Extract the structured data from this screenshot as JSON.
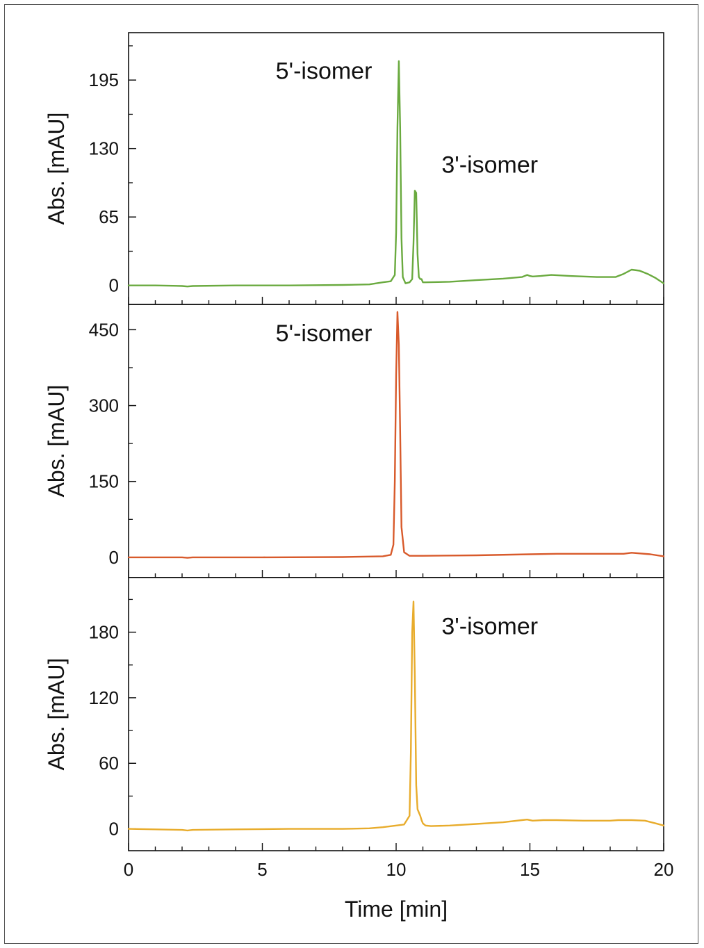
{
  "chart_data": {
    "type": "line",
    "xlabel": "Time [min]",
    "xlim": [
      0,
      20
    ],
    "x_ticks": [
      0,
      5,
      10,
      15,
      20
    ],
    "grid": false,
    "legend": "none",
    "panels": [
      {
        "ylabel": "Abs. [mAU]",
        "ylim": [
          -18,
          240
        ],
        "y_ticks": [
          0,
          65,
          130,
          195
        ],
        "color": "#6aaa3f",
        "annotations": [
          {
            "text": "5'-isomer",
            "x": 7.3,
            "y": 196
          },
          {
            "text": "3'-isomer",
            "x": 13.5,
            "y": 107
          }
        ],
        "series": [
          {
            "x": [
              0,
              1,
              2,
              2.2,
              2.4,
              4,
              6,
              8,
              9,
              9.5,
              9.8,
              9.95,
              10.0,
              10.05,
              10.1,
              10.15,
              10.2,
              10.25,
              10.35,
              10.5,
              10.6,
              10.65,
              10.7,
              10.75,
              10.8,
              10.85,
              10.9,
              10.95,
              11.0,
              11.1,
              12,
              13,
              14,
              14.7,
              14.9,
              15.0,
              15.1,
              15.4,
              15.8,
              16.5,
              17.5,
              18.2,
              18.5,
              18.8,
              19.1,
              19.4,
              19.7,
              20
            ],
            "y": [
              0,
              0,
              -0.5,
              -1,
              -0.5,
              0,
              0,
              0.5,
              1,
              3,
              4,
              10,
              50,
              150,
              213,
              150,
              45,
              8,
              2,
              3,
              6,
              40,
              90,
              88,
              30,
              8,
              6,
              6,
              3,
              3,
              3.5,
              5,
              6.5,
              8,
              10,
              9,
              8.5,
              9,
              10,
              9,
              8,
              8,
              11,
              15,
              14,
              11,
              7,
              2
            ]
          }
        ]
      },
      {
        "ylabel": "Abs. [mAU]",
        "ylim": [
          -40,
          500
        ],
        "y_ticks": [
          0,
          150,
          300,
          450
        ],
        "color": "#d85a2b",
        "annotations": [
          {
            "text": "5'-isomer",
            "x": 7.3,
            "y": 427
          }
        ],
        "series": [
          {
            "x": [
              0,
              2,
              2.2,
              2.4,
              5,
              8,
              9.5,
              9.8,
              9.9,
              9.95,
              10.0,
              10.05,
              10.1,
              10.15,
              10.2,
              10.3,
              10.5,
              11,
              13,
              15,
              16,
              17,
              18.5,
              18.8,
              19.5,
              20
            ],
            "y": [
              0,
              0,
              -1,
              0,
              0,
              0.5,
              2,
              5,
              25,
              150,
              360,
              485,
              420,
              250,
              60,
              10,
              3,
              3,
              4,
              6,
              7,
              7,
              7,
              9,
              6,
              2
            ]
          }
        ]
      },
      {
        "ylabel": "Abs. [mAU]",
        "ylim": [
          -20,
          230
        ],
        "y_ticks": [
          0,
          60,
          120,
          180
        ],
        "color": "#e8ac2c",
        "annotations": [
          {
            "text": "3'-isomer",
            "x": 13.5,
            "y": 178
          }
        ],
        "series": [
          {
            "x": [
              0,
              1,
              2,
              2.2,
              2.4,
              4,
              6,
              8,
              9,
              9.5,
              10,
              10.3,
              10.5,
              10.55,
              10.6,
              10.65,
              10.7,
              10.75,
              10.8,
              10.85,
              10.9,
              10.95,
              11.0,
              11.1,
              11.3,
              12,
              13,
              14,
              14.7,
              14.9,
              15.1,
              15.5,
              16,
              17,
              18,
              18.3,
              18.8,
              19.3,
              19.7,
              20
            ],
            "y": [
              0,
              -0.5,
              -1,
              -1.5,
              -1,
              -0.5,
              0,
              0,
              0.5,
              1.5,
              3,
              4,
              12,
              70,
              180,
              208,
              140,
              40,
              18,
              15,
              12,
              8,
              5,
              3,
              2.5,
              3,
              4.5,
              6,
              8,
              8.5,
              7.5,
              8,
              8,
              7.5,
              7.5,
              8,
              8,
              7.5,
              5,
              3
            ]
          }
        ]
      }
    ]
  }
}
